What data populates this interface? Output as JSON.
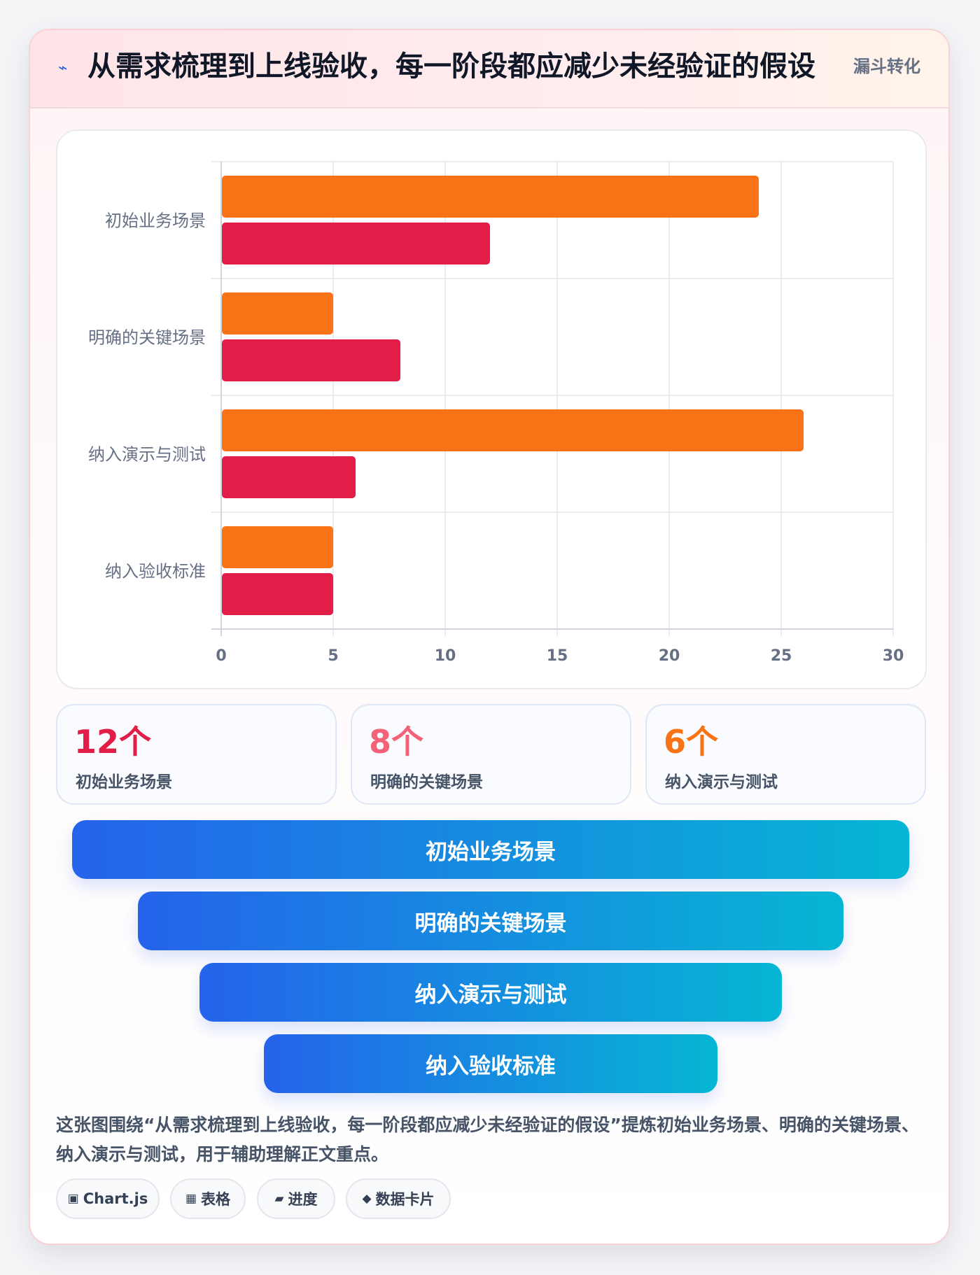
{
  "header": {
    "icon": "lightning-icon",
    "title": "从需求梳理到上线验收，每一阶段都应减少未经验证的假设",
    "badge": "漏斗转化"
  },
  "chart_data": {
    "type": "bar",
    "orientation": "horizontal",
    "categories": [
      "初始业务场景",
      "明确的关键场景",
      "纳入演示与测试",
      "纳入验收标准"
    ],
    "series": [
      {
        "values": [
          24,
          5,
          26,
          5
        ],
        "color": "#f97316"
      },
      {
        "values": [
          12,
          8,
          6,
          5
        ],
        "color": "#e11d48"
      }
    ],
    "xlim": [
      0,
      30
    ],
    "xticks": [
      "0",
      "5",
      "10",
      "15",
      "20",
      "25",
      "30"
    ],
    "grid": true,
    "legend": "none"
  },
  "stats": [
    {
      "value": "12个",
      "label": "初始业务场景",
      "color": "#e11d48"
    },
    {
      "value": "8个",
      "label": "明确的关键场景",
      "color": "#f4627a"
    },
    {
      "value": "6个",
      "label": "纳入演示与测试",
      "color": "#f97316"
    }
  ],
  "funnel": [
    "初始业务场景",
    "明确的关键场景",
    "纳入演示与测试",
    "纳入验收标准"
  ],
  "caption": "这张图围绕“从需求梳理到上线验收，每一阶段都应减少未经验证的假设”提炼初始业务场景、明确的关键场景、纳入演示与测试，用于辅助理解正文重点。",
  "tags": [
    {
      "icon": "▣",
      "icon_name": "chart-icon",
      "label": "Chart.js"
    },
    {
      "icon": "▦",
      "icon_name": "table-icon",
      "label": "表格"
    },
    {
      "icon": "▰",
      "icon_name": "progress-icon",
      "label": "进度"
    },
    {
      "icon": "◆",
      "icon_name": "data-card-icon",
      "label": "数据卡片"
    }
  ]
}
